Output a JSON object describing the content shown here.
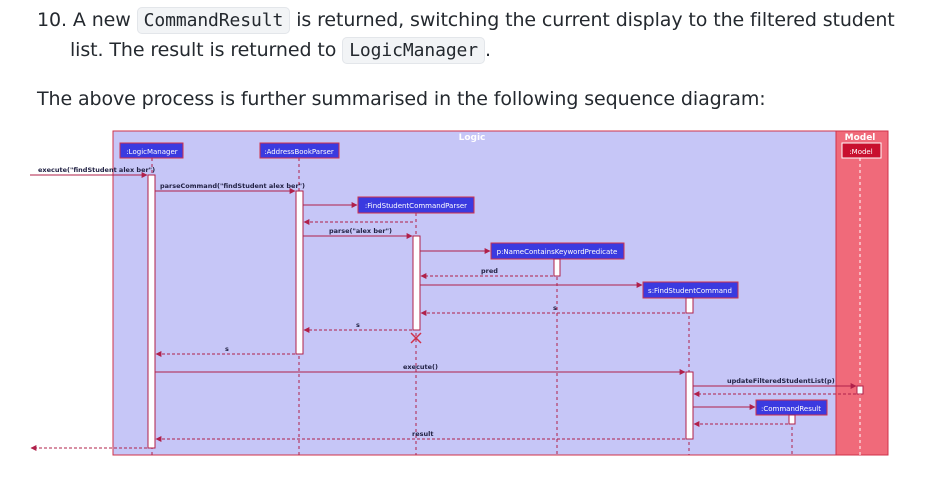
{
  "step": {
    "number": "10.",
    "t1": "A new",
    "c1": "CommandResult",
    "t2": "is returned, switching the current display to the filtered student",
    "t3": "list. The result is returned to",
    "c2": "LogicManager",
    "t4": "."
  },
  "summary": "The above process is further summarised in the following sequence diagram:",
  "diagram": {
    "frame_logic": "Logic",
    "frame_model": "Model",
    "participants": {
      "logic_manager": ":LogicManager",
      "address_book_parser": ":AddressBookParser",
      "find_student_command_parser": ":FindStudentCommandParser",
      "predicate": "p:NameContainsKeywordPredicate",
      "find_student_command": "s:FindStudentCommand",
      "command_result": ":CommandResult",
      "model": ":Model"
    },
    "messages": {
      "execute_call": "execute(\"findStudent alex ber\")",
      "parse_command": "parseCommand(\"findStudent alex ber\")",
      "parse": "parse(\"alex ber\")",
      "pred": "pred",
      "s1": "s",
      "s2": "s",
      "s3": "s",
      "execute": "execute()",
      "update": "updateFilteredStudentList(p)",
      "result": "result"
    },
    "colors": {
      "logic_bg": "#c6c6f7",
      "model_bg": "#f06a7a",
      "frame_border": "#d0314a",
      "participant_bg": "#3a3ae0",
      "arrow": "#b0204a"
    }
  }
}
